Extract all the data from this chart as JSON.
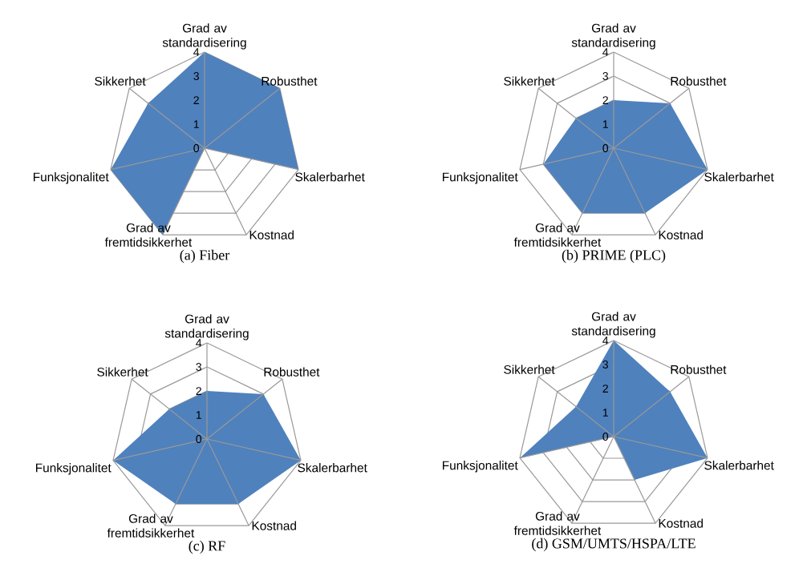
{
  "chart_data": [
    {
      "type": "radar",
      "title": "(a) Fiber",
      "categories": [
        "Grad av standardisering",
        "Robusthet",
        "Skalerbarhet",
        "Kostnad",
        "Grad av fremtidsikkerhet",
        "Funksjonalitet",
        "Sikkerhet"
      ],
      "ylim": [
        0,
        4
      ],
      "yticks": [
        0,
        1,
        2,
        3,
        4
      ],
      "grid": true,
      "series": [
        {
          "color": "#4f81bd",
          "values": [
            4,
            4,
            4,
            0,
            4,
            4,
            3
          ]
        }
      ]
    },
    {
      "type": "radar",
      "title": "(b) PRIME (PLC)",
      "categories": [
        "Grad av standardisering",
        "Robusthet",
        "Skalerbarhet",
        "Kostnad",
        "Grad av fremtidsikkerhet",
        "Funksjonalitet",
        "Sikkerhet"
      ],
      "ylim": [
        0,
        4
      ],
      "yticks": [
        0,
        1,
        2,
        3,
        4
      ],
      "grid": true,
      "series": [
        {
          "color": "#4f81bd",
          "values": [
            2,
            3,
            4,
            3,
            3,
            3,
            2
          ]
        }
      ]
    },
    {
      "type": "radar",
      "title": "(c) RF",
      "categories": [
        "Grad av standardisering",
        "Robusthet",
        "Skalerbarhet",
        "Kostnad",
        "Grad av fremtidsikkerhet",
        "Funksjonalitet",
        "Sikkerhet"
      ],
      "ylim": [
        0,
        4
      ],
      "yticks": [
        0,
        1,
        2,
        3,
        4
      ],
      "grid": true,
      "series": [
        {
          "color": "#4f81bd",
          "values": [
            2,
            3,
            4,
            3,
            3,
            4,
            2
          ]
        }
      ]
    },
    {
      "type": "radar",
      "title": "(d) GSM/UMTS/HSPA/LTE",
      "categories": [
        "Grad av standardisering",
        "Robusthet",
        "Skalerbarhet",
        "Kostnad",
        "Grad av fremtidsikkerhet",
        "Funksjonalitet",
        "Sikkerhet"
      ],
      "ylim": [
        0,
        4
      ],
      "yticks": [
        0,
        1,
        2,
        3,
        4
      ],
      "grid": true,
      "series": [
        {
          "color": "#4f81bd",
          "values": [
            4,
            3,
            4,
            2,
            0,
            4,
            2
          ]
        }
      ]
    }
  ]
}
